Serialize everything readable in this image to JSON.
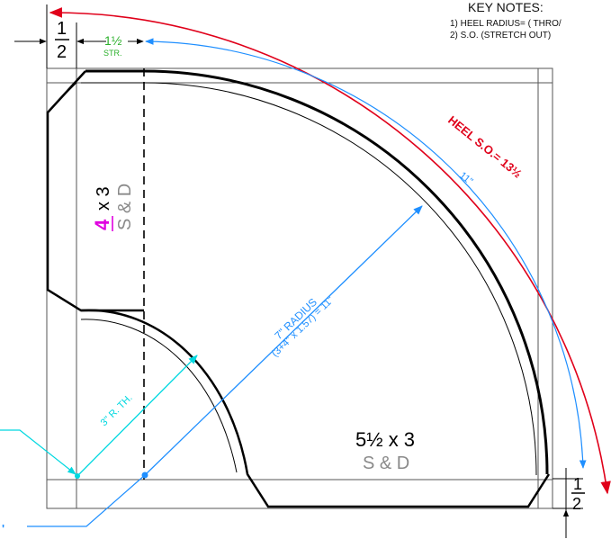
{
  "key_notes": {
    "title": "KEY NOTES:",
    "items": [
      "1) HEEL RADIUS= ( THRO/",
      "2) S.O. (STRETCH OUT)"
    ]
  },
  "dims": {
    "top_half_num": "1",
    "top_half_den": "2",
    "str_value": "1½",
    "str_label": "STR.",
    "right_half_num": "1",
    "right_half_den": "2"
  },
  "labels": {
    "heel_so": "HEEL S.O.= 13½",
    "eleven": "11\"",
    "radius_line1": "7\" RADIUS",
    "radius_line2": "(3+4\" x 1.57) = 11\"",
    "throat": "3\" R. TH.",
    "cheek_num": "4",
    "cheek_x": "x 3",
    "cheek_sd": "S & D",
    "bottom_size": "5½  x 3",
    "bottom_sd": "S & D",
    "partial_left": "'"
  },
  "colors": {
    "line": "#000000",
    "red": "#e0001a",
    "blue": "#1f8fff",
    "cyan": "#00d8e0",
    "green": "#2bb02b",
    "magenta": "#e000e0",
    "gray": "#8a8a8a"
  }
}
